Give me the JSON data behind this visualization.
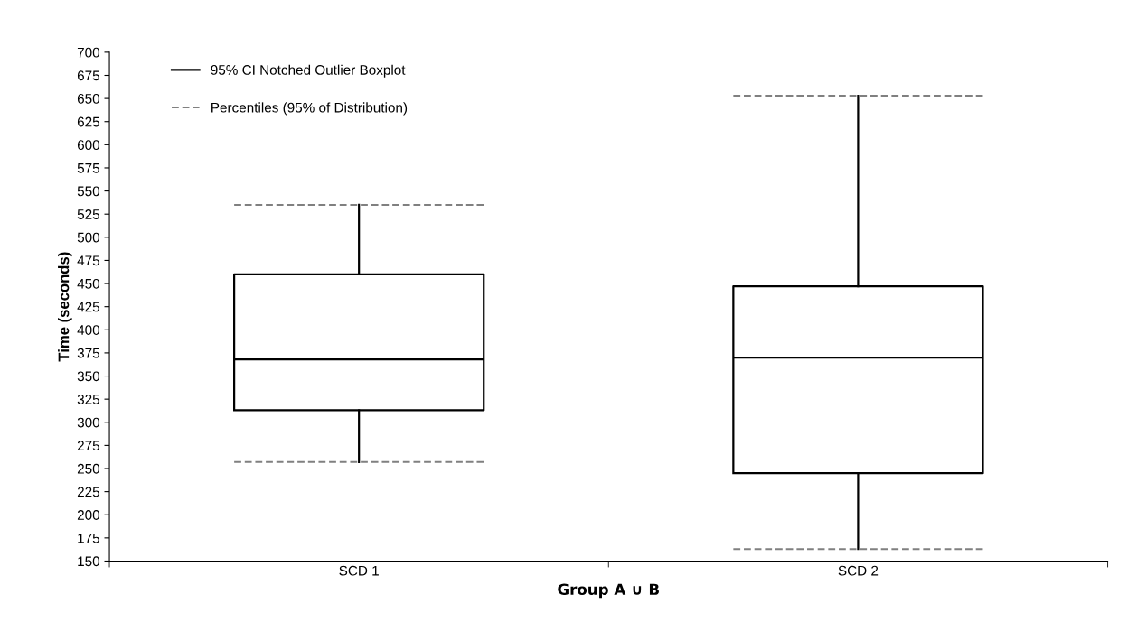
{
  "chart_data": {
    "type": "box",
    "xlabel": "Group A ∪ B",
    "ylabel": "Time (seconds)",
    "categories": [
      "SCD 1",
      "SCD 2"
    ],
    "series": [
      {
        "name": "95% CI Notched Outlier Boxplot",
        "color": "#000000",
        "boxes": [
          {
            "low": 257,
            "q1": 313,
            "median": 368,
            "q3": 460,
            "high": 535
          },
          {
            "low": 163,
            "q1": 245,
            "median": 370,
            "q3": 447,
            "high": 653
          }
        ]
      },
      {
        "name": "Percentiles (95% of Distribution)",
        "type": "line",
        "line_style": "dashed",
        "color": "#808080",
        "values": [
          null,
          null
        ]
      }
    ],
    "ylim": [
      150,
      700
    ],
    "yticks": [
      150,
      175,
      200,
      225,
      250,
      275,
      300,
      325,
      350,
      375,
      400,
      425,
      450,
      475,
      500,
      525,
      550,
      575,
      600,
      625,
      650,
      675,
      700
    ],
    "grid": false,
    "legend": "top left"
  }
}
